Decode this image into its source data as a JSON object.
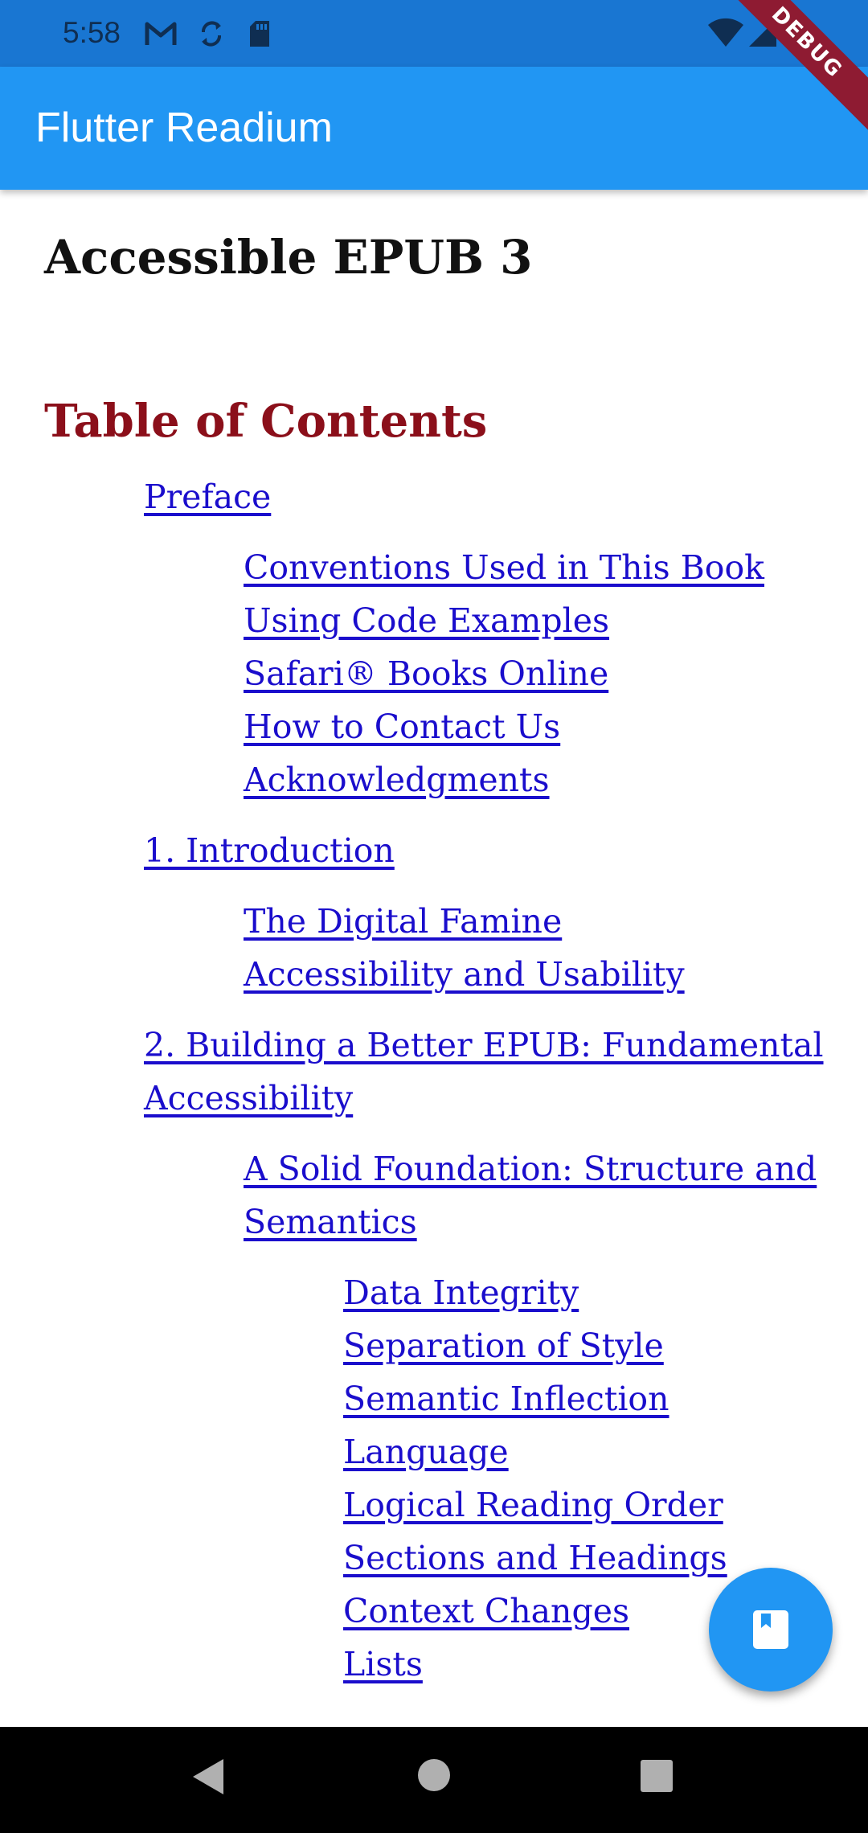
{
  "status_bar": {
    "time": "5:58",
    "icons": [
      "gmail-icon",
      "sync-icon",
      "sd-card-icon",
      "wifi-icon",
      "cell-signal-icon",
      "battery-icon"
    ]
  },
  "debug_banner": "DEBUG",
  "app_bar": {
    "title": "Flutter Readium",
    "color": "#2196F3"
  },
  "book": {
    "title": "Accessible EPUB 3"
  },
  "toc": {
    "heading": "Table of Contents",
    "heading_color": "#8b0f1a",
    "link_color": "#1a0dcc",
    "items": [
      {
        "level": 1,
        "label": "Preface"
      },
      {
        "level": 2,
        "label": "Conventions Used in This Book"
      },
      {
        "level": 2,
        "label": "Using Code Examples"
      },
      {
        "level": 2,
        "label": "Safari® Books Online"
      },
      {
        "level": 2,
        "label": "How to Contact Us"
      },
      {
        "level": 2,
        "label": "Acknowledgments"
      },
      {
        "level": 1,
        "label": "1. Introduction"
      },
      {
        "level": 2,
        "label": "The Digital Famine"
      },
      {
        "level": 2,
        "label": "Accessibility and Usability"
      },
      {
        "level": 1,
        "label": "2. Building a Better EPUB: Fundamental Accessibility"
      },
      {
        "level": 2,
        "label": "A Solid Foundation: Structure and Semantics"
      },
      {
        "level": 3,
        "label": "Data Integrity"
      },
      {
        "level": 3,
        "label": "Separation of Style"
      },
      {
        "level": 3,
        "label": "Semantic Inflection"
      },
      {
        "level": 3,
        "label": "Language"
      },
      {
        "level": 3,
        "label": "Logical Reading Order"
      },
      {
        "level": 3,
        "label": "Sections and Headings"
      },
      {
        "level": 3,
        "label": "Context Changes"
      },
      {
        "level": 3,
        "label": "Lists"
      }
    ]
  },
  "fab": {
    "icon": "book-icon"
  },
  "nav_bar": {
    "buttons": [
      "back-icon",
      "home-icon",
      "recents-icon"
    ]
  }
}
